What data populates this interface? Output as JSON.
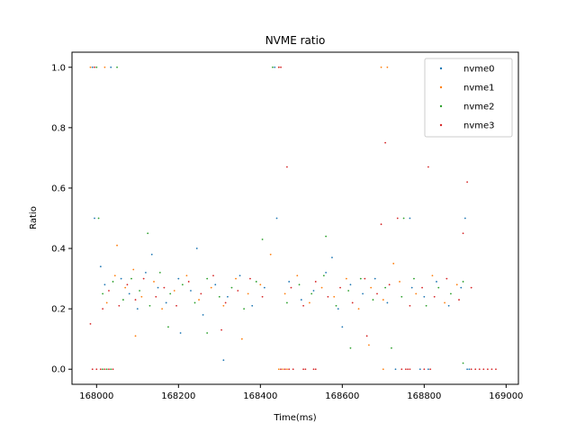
{
  "chart_data": {
    "type": "scatter",
    "title": "NVME ratio",
    "xlabel": "Time(ms)",
    "ylabel": "Ratio",
    "xlim": [
      167940,
      169030
    ],
    "ylim": [
      -0.05,
      1.05
    ],
    "x_ticks": [
      168000,
      168200,
      168400,
      168600,
      168800,
      169000
    ],
    "y_ticks": [
      0.0,
      0.2,
      0.4,
      0.6,
      0.8,
      1.0
    ],
    "x_tick_labels": [
      "168000",
      "168200",
      "168400",
      "168600",
      "168800",
      "169000"
    ],
    "y_tick_labels": [
      "0.0",
      "0.2",
      "0.4",
      "0.6",
      "0.8",
      "1.0"
    ],
    "grid": false,
    "legend_position": "top-right",
    "series": [
      {
        "name": "nvme0",
        "color": "#1f77b4",
        "points": [
          [
            167990,
            1.0
          ],
          [
            167995,
            0.5
          ],
          [
            168035,
            1.0
          ],
          [
            168435,
            1.0
          ],
          [
            168440,
            0.5
          ],
          [
            168765,
            0.5
          ],
          [
            168900,
            0.5
          ],
          [
            168730,
            0.0
          ],
          [
            168790,
            0.0
          ],
          [
            168810,
            0.0
          ],
          [
            168905,
            0.0
          ],
          [
            168910,
            0.0
          ],
          [
            168010,
            0.34
          ],
          [
            168020,
            0.28
          ],
          [
            168060,
            0.3
          ],
          [
            168080,
            0.25
          ],
          [
            168100,
            0.2
          ],
          [
            168120,
            0.32
          ],
          [
            168150,
            0.27
          ],
          [
            168170,
            0.22
          ],
          [
            168200,
            0.3
          ],
          [
            168230,
            0.26
          ],
          [
            168260,
            0.18
          ],
          [
            168290,
            0.28
          ],
          [
            168320,
            0.24
          ],
          [
            168350,
            0.31
          ],
          [
            168380,
            0.21
          ],
          [
            168410,
            0.27
          ],
          [
            168470,
            0.29
          ],
          [
            168500,
            0.23
          ],
          [
            168530,
            0.26
          ],
          [
            168560,
            0.32
          ],
          [
            168590,
            0.2
          ],
          [
            168620,
            0.28
          ],
          [
            168650,
            0.25
          ],
          [
            168680,
            0.3
          ],
          [
            168710,
            0.22
          ],
          [
            168770,
            0.27
          ],
          [
            168800,
            0.24
          ],
          [
            168830,
            0.29
          ],
          [
            168860,
            0.21
          ],
          [
            168890,
            0.27
          ],
          [
            168310,
            0.03
          ],
          [
            168135,
            0.38
          ],
          [
            168245,
            0.4
          ],
          [
            168575,
            0.37
          ],
          [
            168205,
            0.12
          ],
          [
            168600,
            0.14
          ]
        ]
      },
      {
        "name": "nvme1",
        "color": "#ff7f0e",
        "points": [
          [
            167985,
            1.0
          ],
          [
            168020,
            1.0
          ],
          [
            168445,
            1.0
          ],
          [
            168695,
            1.0
          ],
          [
            168710,
            1.0
          ],
          [
            168050,
            0.41
          ],
          [
            168425,
            0.38
          ],
          [
            168725,
            0.35
          ],
          [
            168025,
            0.22
          ],
          [
            168045,
            0.31
          ],
          [
            168070,
            0.27
          ],
          [
            168090,
            0.33
          ],
          [
            168110,
            0.24
          ],
          [
            168140,
            0.29
          ],
          [
            168160,
            0.2
          ],
          [
            168190,
            0.26
          ],
          [
            168220,
            0.31
          ],
          [
            168250,
            0.23
          ],
          [
            168280,
            0.27
          ],
          [
            168310,
            0.21
          ],
          [
            168340,
            0.3
          ],
          [
            168370,
            0.25
          ],
          [
            168400,
            0.28
          ],
          [
            168460,
            0.25
          ],
          [
            168490,
            0.31
          ],
          [
            168520,
            0.22
          ],
          [
            168550,
            0.27
          ],
          [
            168580,
            0.24
          ],
          [
            168610,
            0.3
          ],
          [
            168640,
            0.2
          ],
          [
            168670,
            0.27
          ],
          [
            168700,
            0.23
          ],
          [
            168740,
            0.29
          ],
          [
            168780,
            0.25
          ],
          [
            168820,
            0.31
          ],
          [
            168850,
            0.22
          ],
          [
            168880,
            0.28
          ],
          [
            168095,
            0.11
          ],
          [
            168355,
            0.1
          ],
          [
            168665,
            0.08
          ],
          [
            168445,
            0.0
          ],
          [
            168455,
            0.0
          ],
          [
            168465,
            0.0
          ],
          [
            168700,
            0.0
          ]
        ]
      },
      {
        "name": "nvme2",
        "color": "#2ca02c",
        "points": [
          [
            168000,
            1.0
          ],
          [
            168050,
            1.0
          ],
          [
            168430,
            1.0
          ],
          [
            168750,
            0.5
          ],
          [
            168005,
            0.5
          ],
          [
            168015,
            0.0
          ],
          [
            168025,
            0.0
          ],
          [
            168035,
            0.0
          ],
          [
            168125,
            0.45
          ],
          [
            168405,
            0.43
          ],
          [
            168560,
            0.44
          ],
          [
            168015,
            0.25
          ],
          [
            168040,
            0.29
          ],
          [
            168065,
            0.23
          ],
          [
            168085,
            0.3
          ],
          [
            168105,
            0.26
          ],
          [
            168130,
            0.21
          ],
          [
            168155,
            0.32
          ],
          [
            168180,
            0.25
          ],
          [
            168210,
            0.28
          ],
          [
            168240,
            0.22
          ],
          [
            168270,
            0.3
          ],
          [
            168300,
            0.24
          ],
          [
            168330,
            0.27
          ],
          [
            168360,
            0.2
          ],
          [
            168390,
            0.29
          ],
          [
            168465,
            0.22
          ],
          [
            168495,
            0.28
          ],
          [
            168525,
            0.25
          ],
          [
            168555,
            0.31
          ],
          [
            168585,
            0.21
          ],
          [
            168615,
            0.26
          ],
          [
            168645,
            0.3
          ],
          [
            168675,
            0.23
          ],
          [
            168705,
            0.27
          ],
          [
            168745,
            0.24
          ],
          [
            168775,
            0.3
          ],
          [
            168805,
            0.21
          ],
          [
            168835,
            0.27
          ],
          [
            168865,
            0.25
          ],
          [
            168895,
            0.29
          ],
          [
            168720,
            0.07
          ],
          [
            168175,
            0.14
          ],
          [
            168270,
            0.12
          ],
          [
            168620,
            0.07
          ],
          [
            168895,
            0.02
          ]
        ]
      },
      {
        "name": "nvme3",
        "color": "#d62728",
        "points": [
          [
            167995,
            1.0
          ],
          [
            168450,
            1.0
          ],
          [
            168445,
            1.0
          ],
          [
            168705,
            0.75
          ],
          [
            168810,
            0.67
          ],
          [
            168465,
            0.67
          ],
          [
            168905,
            0.62
          ],
          [
            168735,
            0.5
          ],
          [
            168695,
            0.48
          ],
          [
            168895,
            0.45
          ],
          [
            167985,
            0.15
          ],
          [
            168015,
            0.2
          ],
          [
            168030,
            0.26
          ],
          [
            168055,
            0.21
          ],
          [
            168075,
            0.28
          ],
          [
            168095,
            0.23
          ],
          [
            168115,
            0.3
          ],
          [
            168145,
            0.24
          ],
          [
            168165,
            0.27
          ],
          [
            168195,
            0.21
          ],
          [
            168225,
            0.29
          ],
          [
            168255,
            0.25
          ],
          [
            168285,
            0.31
          ],
          [
            168315,
            0.22
          ],
          [
            168345,
            0.26
          ],
          [
            168375,
            0.3
          ],
          [
            168405,
            0.24
          ],
          [
            168475,
            0.27
          ],
          [
            168505,
            0.21
          ],
          [
            168535,
            0.29
          ],
          [
            168565,
            0.24
          ],
          [
            168595,
            0.27
          ],
          [
            168625,
            0.22
          ],
          [
            168655,
            0.3
          ],
          [
            168685,
            0.25
          ],
          [
            168715,
            0.28
          ],
          [
            168765,
            0.21
          ],
          [
            168795,
            0.27
          ],
          [
            168825,
            0.24
          ],
          [
            168855,
            0.3
          ],
          [
            168885,
            0.23
          ],
          [
            168915,
            0.27
          ],
          [
            168305,
            0.13
          ],
          [
            168660,
            0.11
          ],
          [
            167990,
            0.0
          ],
          [
            168000,
            0.0
          ],
          [
            168010,
            0.0
          ],
          [
            168020,
            0.0
          ],
          [
            168030,
            0.0
          ],
          [
            168040,
            0.0
          ],
          [
            168450,
            0.0
          ],
          [
            168460,
            0.0
          ],
          [
            168470,
            0.0
          ],
          [
            168480,
            0.0
          ],
          [
            168505,
            0.0
          ],
          [
            168510,
            0.0
          ],
          [
            168530,
            0.0
          ],
          [
            168535,
            0.0
          ],
          [
            168745,
            0.0
          ],
          [
            168755,
            0.0
          ],
          [
            168760,
            0.0
          ],
          [
            168765,
            0.0
          ],
          [
            168800,
            0.0
          ],
          [
            168815,
            0.0
          ],
          [
            168915,
            0.0
          ],
          [
            168925,
            0.0
          ],
          [
            168935,
            0.0
          ],
          [
            168945,
            0.0
          ],
          [
            168955,
            0.0
          ],
          [
            168965,
            0.0
          ],
          [
            168975,
            0.0
          ]
        ]
      }
    ]
  }
}
